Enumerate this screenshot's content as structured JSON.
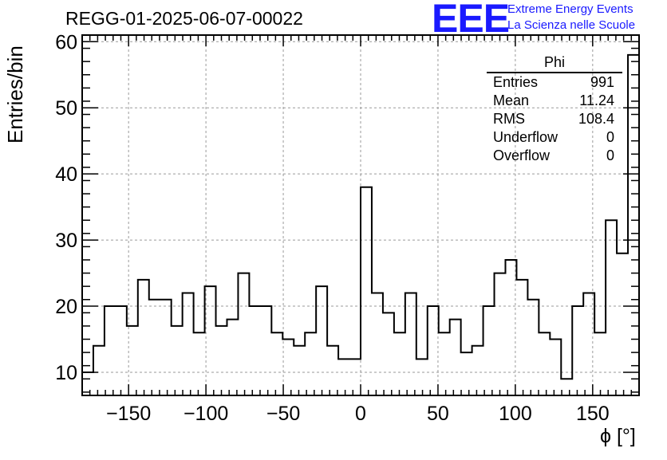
{
  "title": "REGG-01-2025-06-07-00022",
  "logo": {
    "mark": "EEE",
    "line1": "Extreme Energy Events",
    "line2": "La Scienza nelle Scuole",
    "color": "#1a1aff"
  },
  "stats": {
    "name": "Phi",
    "rows": [
      {
        "label": "Entries",
        "value": "991"
      },
      {
        "label": "Mean",
        "value": "11.24"
      },
      {
        "label": "RMS",
        "value": "108.4"
      },
      {
        "label": "Underflow",
        "value": "0"
      },
      {
        "label": "Overflow",
        "value": "0"
      }
    ]
  },
  "chart_data": {
    "type": "bar",
    "histogram": true,
    "title": "REGG-01-2025-06-07-00022",
    "xlabel": "ϕ [°]",
    "ylabel": "Entries/bin",
    "xlim": [
      -180,
      180
    ],
    "ylim": [
      6.5,
      61
    ],
    "bin_width": 7.2,
    "xticks": [
      -150,
      -100,
      -50,
      0,
      50,
      100,
      150
    ],
    "xtick_labels": [
      "−150",
      "−100",
      "−50",
      "0",
      "50",
      "100",
      "150"
    ],
    "yticks": [
      10,
      20,
      30,
      40,
      50,
      60
    ],
    "ytick_labels": [
      "10",
      "20",
      "30",
      "40",
      "50",
      "60"
    ],
    "grid": true,
    "values": [
      10,
      14,
      20,
      20,
      17,
      24,
      21,
      21,
      17,
      22,
      16,
      23,
      17,
      18,
      25,
      20,
      20,
      16,
      15,
      14,
      16,
      23,
      14,
      12,
      12,
      38,
      22,
      19,
      16,
      22,
      12,
      20,
      16,
      18,
      13,
      14,
      20,
      25,
      27,
      24,
      21,
      16,
      15,
      9,
      20,
      22,
      16,
      33,
      28,
      58
    ]
  }
}
